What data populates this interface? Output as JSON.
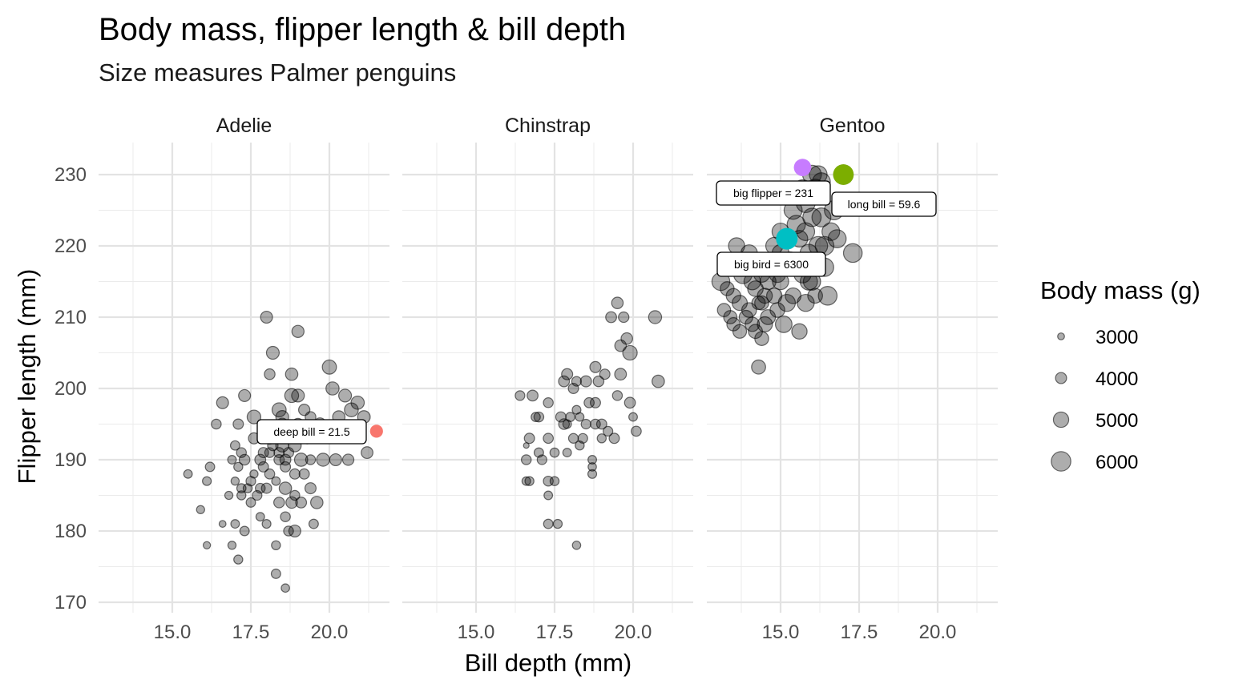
{
  "chart_data": {
    "type": "scatter",
    "title": "Body mass, flipper length & bill depth",
    "subtitle": "Size measures Palmer penguins",
    "xlabel": "Bill depth (mm)",
    "ylabel": "Flipper length (mm)",
    "xlim": [
      13.1,
      21.5
    ],
    "ylim": [
      170,
      232
    ],
    "x_ticks": [
      "15.0",
      "17.5",
      "20.0"
    ],
    "x_tick_values": [
      15.0,
      17.5,
      20.0
    ],
    "y_ticks": [
      "170",
      "180",
      "190",
      "200",
      "210",
      "220",
      "230"
    ],
    "y_tick_values": [
      170,
      180,
      190,
      200,
      210,
      220,
      230
    ],
    "grid": true,
    "size_legend": {
      "title": "Body mass (g)",
      "position": "right",
      "entries": [
        {
          "label": "3000",
          "value": 3000
        },
        {
          "label": "4000",
          "value": 4000
        },
        {
          "label": "5000",
          "value": 5000
        },
        {
          "label": "6000",
          "value": 6000
        }
      ]
    },
    "panels": [
      {
        "name": "Adelie",
        "points": [
          [
            15.5,
            188,
            3400
          ],
          [
            16.2,
            189,
            3600
          ],
          [
            15.9,
            183,
            3300
          ],
          [
            16.1,
            187,
            3450
          ],
          [
            16.1,
            178,
            3100
          ],
          [
            16.4,
            195,
            3700
          ],
          [
            16.6,
            181,
            3000
          ],
          [
            16.8,
            185,
            3300
          ],
          [
            16.9,
            190,
            3400
          ],
          [
            17.0,
            192,
            3600
          ],
          [
            16.6,
            198,
            4200
          ],
          [
            17.1,
            195,
            3800
          ],
          [
            17.2,
            185,
            3500
          ],
          [
            17.0,
            181,
            3400
          ],
          [
            17.1,
            176,
            3500
          ],
          [
            16.9,
            178,
            3300
          ],
          [
            17.3,
            180,
            3600
          ],
          [
            17.3,
            199,
            4200
          ],
          [
            17.0,
            187,
            3300
          ],
          [
            17.1,
            189,
            3500
          ],
          [
            17.2,
            191,
            3700
          ],
          [
            17.3,
            190,
            3900
          ],
          [
            17.4,
            186,
            3500
          ],
          [
            17.5,
            187,
            3650
          ],
          [
            17.6,
            196,
            4600
          ],
          [
            17.7,
            185,
            3650
          ],
          [
            17.8,
            190,
            3950
          ],
          [
            17.8,
            186,
            3700
          ],
          [
            17.8,
            182,
            3400
          ],
          [
            17.9,
            191,
            3800
          ],
          [
            18.0,
            181,
            3450
          ],
          [
            18.0,
            186,
            3800
          ],
          [
            18.1,
            188,
            3750
          ],
          [
            18.1,
            193,
            4100
          ],
          [
            18.0,
            210,
            4200
          ],
          [
            18.2,
            205,
            4400
          ],
          [
            18.1,
            202,
            3900
          ],
          [
            18.3,
            178,
            3500
          ],
          [
            18.3,
            174,
            3600
          ],
          [
            18.4,
            197,
            4700
          ],
          [
            18.4,
            190,
            3800
          ],
          [
            18.4,
            184,
            3900
          ],
          [
            18.5,
            196,
            4400
          ],
          [
            18.5,
            192,
            4450
          ],
          [
            18.6,
            190,
            3950
          ],
          [
            18.6,
            182,
            3700
          ],
          [
            18.6,
            186,
            4300
          ],
          [
            18.6,
            172,
            3350
          ],
          [
            18.7,
            180,
            3700
          ],
          [
            18.7,
            194,
            4000
          ],
          [
            18.8,
            199,
            4650
          ],
          [
            18.8,
            184,
            4100
          ],
          [
            18.9,
            192,
            4400
          ],
          [
            18.9,
            188,
            3800
          ],
          [
            18.9,
            180,
            4200
          ],
          [
            19.0,
            208,
            4250
          ],
          [
            19.0,
            199,
            4400
          ],
          [
            19.0,
            195,
            4100
          ],
          [
            19.1,
            190,
            4500
          ],
          [
            19.1,
            184,
            3950
          ],
          [
            19.2,
            197,
            4050
          ],
          [
            19.3,
            193,
            3950
          ],
          [
            19.4,
            196,
            3900
          ],
          [
            19.5,
            181,
            3600
          ],
          [
            19.6,
            184,
            4300
          ],
          [
            19.7,
            195,
            4300
          ],
          [
            19.8,
            190,
            4450
          ],
          [
            20.0,
            203,
            4725
          ],
          [
            20.1,
            200,
            4475
          ],
          [
            20.2,
            190,
            4200
          ],
          [
            20.3,
            196,
            4300
          ],
          [
            20.5,
            199,
            4400
          ],
          [
            20.6,
            190,
            4050
          ],
          [
            20.7,
            197,
            4650
          ],
          [
            20.9,
            198,
            4500
          ],
          [
            21.1,
            196,
            4350
          ],
          [
            21.2,
            191,
            4150
          ],
          [
            18.2,
            192,
            3850
          ],
          [
            18.8,
            202,
            4300
          ],
          [
            17.6,
            193,
            4000
          ],
          [
            18.1,
            191,
            3700
          ],
          [
            18.7,
            191,
            3800
          ],
          [
            17.9,
            189,
            3800
          ],
          [
            17.5,
            184,
            3600
          ],
          [
            18.9,
            185,
            3700
          ],
          [
            18.3,
            187,
            3400
          ],
          [
            19.4,
            190,
            3700
          ],
          [
            18.5,
            195,
            4200
          ],
          [
            19.2,
            188,
            3800
          ],
          [
            17.6,
            188,
            3300
          ],
          [
            18.6,
            189,
            3800
          ],
          [
            17.2,
            186,
            3550
          ],
          [
            19.4,
            186,
            4000
          ],
          [
            18.4,
            191,
            3800
          ]
        ]
      },
      {
        "name": "Chinstrap",
        "points": [
          [
            16.4,
            199,
            3650
          ],
          [
            16.6,
            190,
            3700
          ],
          [
            16.6,
            187,
            3400
          ],
          [
            16.7,
            187,
            3500
          ],
          [
            16.7,
            193,
            3800
          ],
          [
            16.8,
            199,
            3950
          ],
          [
            16.9,
            196,
            3550
          ],
          [
            17.0,
            191,
            3600
          ],
          [
            17.0,
            196,
            3700
          ],
          [
            17.1,
            190,
            3650
          ],
          [
            17.3,
            181,
            3600
          ],
          [
            17.3,
            185,
            3400
          ],
          [
            17.3,
            187,
            3700
          ],
          [
            17.3,
            193,
            3750
          ],
          [
            17.3,
            198,
            3700
          ],
          [
            17.5,
            187,
            3500
          ],
          [
            17.5,
            191,
            3550
          ],
          [
            17.6,
            181,
            3500
          ],
          [
            17.7,
            196,
            3800
          ],
          [
            17.8,
            195,
            3900
          ],
          [
            17.8,
            201,
            3950
          ],
          [
            17.9,
            191,
            3400
          ],
          [
            17.9,
            202,
            4000
          ],
          [
            18.0,
            196,
            3550
          ],
          [
            18.1,
            193,
            3675
          ],
          [
            18.1,
            200,
            3800
          ],
          [
            18.2,
            178,
            3350
          ],
          [
            18.2,
            201,
            3650
          ],
          [
            18.2,
            197,
            3450
          ],
          [
            18.3,
            192,
            3500
          ],
          [
            18.3,
            196,
            3400
          ],
          [
            18.4,
            193,
            3650
          ],
          [
            18.5,
            201,
            4000
          ],
          [
            18.6,
            198,
            3750
          ],
          [
            18.7,
            188,
            3450
          ],
          [
            18.7,
            189,
            3350
          ],
          [
            18.7,
            190,
            3400
          ],
          [
            18.8,
            195,
            3725
          ],
          [
            18.8,
            198,
            3800
          ],
          [
            18.8,
            203,
            4000
          ],
          [
            18.9,
            201,
            3900
          ],
          [
            19.0,
            195,
            3775
          ],
          [
            19.0,
            193,
            3500
          ],
          [
            19.1,
            202,
            3800
          ],
          [
            19.2,
            194,
            3650
          ],
          [
            19.3,
            210,
            3950
          ],
          [
            19.4,
            193,
            3800
          ],
          [
            19.5,
            212,
            4100
          ],
          [
            19.5,
            199,
            3700
          ],
          [
            19.6,
            206,
            4100
          ],
          [
            19.6,
            202,
            4150
          ],
          [
            19.7,
            210,
            3850
          ],
          [
            19.8,
            207,
            4100
          ],
          [
            19.9,
            205,
            4800
          ],
          [
            19.9,
            198,
            3950
          ],
          [
            20.0,
            196,
            3400
          ],
          [
            20.1,
            194,
            3750
          ],
          [
            20.7,
            210,
            4450
          ],
          [
            20.8,
            201,
            4300
          ],
          [
            17.9,
            195,
            3400
          ],
          [
            18.5,
            195,
            3650
          ],
          [
            16.6,
            192,
            2700
          ]
        ]
      },
      {
        "name": "Gentoo",
        "points": [
          [
            13.1,
            215,
            5600
          ],
          [
            13.2,
            211,
            4500
          ],
          [
            13.3,
            214,
            4650
          ],
          [
            13.4,
            210,
            4500
          ],
          [
            13.5,
            213,
            4800
          ],
          [
            13.5,
            209,
            4500
          ],
          [
            13.6,
            220,
            5200
          ],
          [
            13.7,
            212,
            4950
          ],
          [
            13.7,
            208,
            4600
          ],
          [
            13.8,
            216,
            5700
          ],
          [
            13.9,
            210,
            4600
          ],
          [
            13.9,
            217,
            5100
          ],
          [
            14.0,
            211,
            4850
          ],
          [
            14.0,
            219,
            5250
          ],
          [
            14.1,
            215,
            5300
          ],
          [
            14.1,
            209,
            4750
          ],
          [
            14.2,
            214,
            5050
          ],
          [
            14.2,
            208,
            4700
          ],
          [
            14.3,
            212,
            4550
          ],
          [
            14.3,
            203,
            4700
          ],
          [
            14.4,
            207,
            4650
          ],
          [
            14.4,
            216,
            5100
          ],
          [
            14.5,
            213,
            4900
          ],
          [
            14.5,
            209,
            4950
          ],
          [
            14.6,
            215,
            5150
          ],
          [
            14.6,
            210,
            4900
          ],
          [
            14.7,
            217,
            5500
          ],
          [
            14.8,
            213,
            5000
          ],
          [
            14.8,
            220,
            5400
          ],
          [
            14.9,
            216,
            5200
          ],
          [
            15.0,
            215,
            5200
          ],
          [
            15.0,
            219,
            5350
          ],
          [
            15.0,
            222,
            5400
          ],
          [
            15.1,
            209,
            5300
          ],
          [
            15.2,
            212,
            5400
          ],
          [
            15.2,
            221,
            5550
          ],
          [
            15.3,
            218,
            5300
          ],
          [
            15.4,
            213,
            5100
          ],
          [
            15.4,
            225,
            5650
          ],
          [
            15.5,
            223,
            5700
          ],
          [
            15.6,
            221,
            5300
          ],
          [
            15.7,
            228,
            5650
          ],
          [
            15.7,
            216,
            5400
          ],
          [
            15.8,
            222,
            5600
          ],
          [
            15.8,
            226,
            5850
          ],
          [
            15.9,
            215,
            5450
          ],
          [
            15.9,
            219,
            5500
          ],
          [
            16.0,
            224,
            5700
          ],
          [
            16.0,
            230,
            5800
          ],
          [
            16.1,
            213,
            4875
          ],
          [
            16.1,
            228,
            5950
          ],
          [
            16.2,
            220,
            5800
          ],
          [
            16.3,
            224,
            5850
          ],
          [
            16.3,
            229,
            5600
          ],
          [
            16.4,
            217,
            5700
          ],
          [
            16.5,
            213,
            5800
          ],
          [
            16.6,
            222,
            5550
          ],
          [
            16.7,
            225,
            5900
          ],
          [
            16.8,
            221,
            5650
          ],
          [
            17.0,
            230,
            6000
          ],
          [
            17.3,
            219,
            5800
          ],
          [
            16.2,
            230,
            5550
          ],
          [
            15.6,
            208,
            5000
          ],
          [
            14.9,
            211,
            4850
          ],
          [
            14.4,
            212,
            4700
          ],
          [
            15.8,
            212,
            5400
          ],
          [
            16.0,
            215,
            5450
          ],
          [
            16.4,
            220,
            5800
          ]
        ]
      }
    ],
    "highlights": [
      {
        "panel": "Adelie",
        "label": "deep bill = 21.5",
        "x": 21.5,
        "y": 194,
        "mass": 4250,
        "color": "#F8766D"
      },
      {
        "panel": "Gentoo",
        "label": "big bird = 6300",
        "x": 15.2,
        "y": 221,
        "mass": 6300,
        "color": "#00BFC4"
      },
      {
        "panel": "Gentoo",
        "label": "long bill = 59.6",
        "x": 17.0,
        "y": 230,
        "mass": 6050,
        "color": "#7CAE00"
      },
      {
        "panel": "Gentoo",
        "label": "big flipper = 231",
        "x": 15.7,
        "y": 231,
        "mass": 5300,
        "color": "#C77CFF"
      }
    ]
  }
}
